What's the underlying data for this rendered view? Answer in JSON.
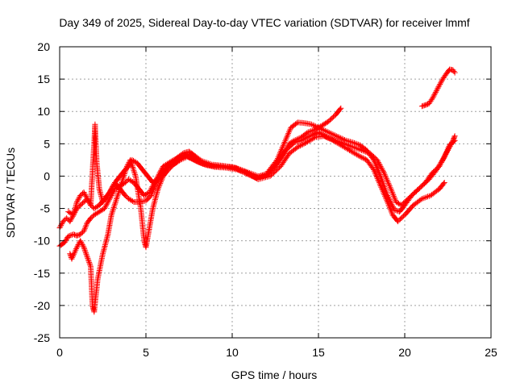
{
  "chart_data": {
    "type": "scatter",
    "title": "Day 349 of 2025, Sidereal Day-to-day VTEC variation (SDTVAR) for receiver lmmf",
    "xlabel": "GPS time / hours",
    "ylabel": "SDTVAR / TECUs",
    "xlim": [
      0,
      25
    ],
    "ylim": [
      -25,
      20
    ],
    "xticks": [
      0,
      5,
      10,
      15,
      20,
      25
    ],
    "yticks": [
      -25,
      -20,
      -15,
      -10,
      -5,
      0,
      5,
      10,
      15,
      20
    ],
    "grid": true,
    "marker": "+",
    "series_color": "#ff0000",
    "series": [
      {
        "name": "trace-1",
        "points": [
          [
            0.0,
            -10.8
          ],
          [
            0.3,
            -10.2
          ],
          [
            0.5,
            -9.3
          ],
          [
            0.8,
            -9.0
          ],
          [
            1.0,
            -9.2
          ],
          [
            1.2,
            -9.0
          ],
          [
            1.4,
            -8.5
          ],
          [
            1.6,
            -7.2
          ],
          [
            1.8,
            -6.5
          ],
          [
            2.0,
            -6.0
          ],
          [
            2.3,
            -5.5
          ],
          [
            2.6,
            -5.0
          ],
          [
            2.8,
            -4.0
          ],
          [
            3.0,
            -3.0
          ],
          [
            3.2,
            -2.0
          ],
          [
            3.5,
            -1.5
          ],
          [
            3.8,
            -1.0
          ],
          [
            4.0,
            -0.5
          ],
          [
            4.3,
            -1.0
          ],
          [
            4.6,
            -2.0
          ],
          [
            4.9,
            -3.0
          ],
          [
            5.2,
            -2.5
          ],
          [
            5.5,
            -1.0
          ],
          [
            5.8,
            0.5
          ],
          [
            6.0,
            1.5
          ],
          [
            6.3,
            2.0
          ],
          [
            6.6,
            2.5
          ],
          [
            7.0,
            3.0
          ],
          [
            7.3,
            3.2
          ],
          [
            7.6,
            2.8
          ],
          [
            8.0,
            2.2
          ],
          [
            8.5,
            1.7
          ],
          [
            9.0,
            1.5
          ],
          [
            9.5,
            1.5
          ],
          [
            10.0,
            1.4
          ],
          [
            10.5,
            1.0
          ],
          [
            11.0,
            0.5
          ],
          [
            11.5,
            0.0
          ],
          [
            12.0,
            0.2
          ],
          [
            12.5,
            1.5
          ],
          [
            13.0,
            3.5
          ],
          [
            13.3,
            5.0
          ],
          [
            13.6,
            5.5
          ],
          [
            14.0,
            6.0
          ],
          [
            14.4,
            6.8
          ],
          [
            14.8,
            7.2
          ],
          [
            15.2,
            7.8
          ],
          [
            15.6,
            8.5
          ],
          [
            16.0,
            9.5
          ],
          [
            16.3,
            10.5
          ]
        ]
      },
      {
        "name": "trace-2",
        "points": [
          [
            0.0,
            -8.0
          ],
          [
            0.2,
            -7.0
          ],
          [
            0.4,
            -6.5
          ],
          [
            0.6,
            -7.0
          ],
          [
            0.8,
            -6.0
          ],
          [
            1.0,
            -4.0
          ],
          [
            1.2,
            -3.0
          ],
          [
            1.4,
            -2.5
          ],
          [
            1.6,
            -3.5
          ],
          [
            1.8,
            -4.5
          ],
          [
            1.9,
            0.5
          ],
          [
            2.0,
            5.0
          ],
          [
            2.05,
            8.0
          ],
          [
            2.15,
            2.0
          ],
          [
            2.3,
            -2.0
          ],
          [
            2.5,
            -4.0
          ],
          [
            2.8,
            -3.0
          ],
          [
            3.0,
            -2.0
          ],
          [
            3.2,
            -1.0
          ],
          [
            3.5,
            -2.0
          ],
          [
            3.8,
            -3.0
          ],
          [
            4.0,
            -3.5
          ],
          [
            4.3,
            -4.0
          ],
          [
            4.6,
            -4.0
          ],
          [
            5.0,
            -3.8
          ],
          [
            5.3,
            -3.0
          ],
          [
            5.6,
            -1.0
          ],
          [
            6.0,
            1.0
          ],
          [
            6.4,
            1.8
          ],
          [
            6.8,
            2.8
          ],
          [
            7.2,
            3.6
          ],
          [
            7.5,
            3.8
          ],
          [
            7.8,
            3.2
          ],
          [
            8.2,
            2.4
          ],
          [
            8.8,
            1.8
          ],
          [
            9.5,
            1.6
          ],
          [
            10.2,
            1.3
          ],
          [
            10.8,
            0.6
          ],
          [
            11.4,
            -0.2
          ],
          [
            12.0,
            0.4
          ],
          [
            12.6,
            2.5
          ],
          [
            13.0,
            5.0
          ],
          [
            13.4,
            7.5
          ],
          [
            13.8,
            8.3
          ],
          [
            14.2,
            8.2
          ],
          [
            14.6,
            8.0
          ],
          [
            15.0,
            7.5
          ],
          [
            15.4,
            7.0
          ],
          [
            15.8,
            6.5
          ],
          [
            16.2,
            6.0
          ],
          [
            16.6,
            5.5
          ],
          [
            17.0,
            5.2
          ],
          [
            17.4,
            4.8
          ],
          [
            17.8,
            4.0
          ],
          [
            18.2,
            2.5
          ],
          [
            18.6,
            0.0
          ],
          [
            19.0,
            -3.0
          ],
          [
            19.4,
            -5.2
          ],
          [
            19.7,
            -5.5
          ],
          [
            20.0,
            -4.5
          ],
          [
            20.4,
            -3.0
          ],
          [
            20.8,
            -2.0
          ],
          [
            21.2,
            -1.0
          ],
          [
            21.6,
            0.5
          ],
          [
            22.0,
            1.5
          ],
          [
            22.3,
            3.0
          ],
          [
            22.6,
            4.8
          ],
          [
            22.9,
            5.5
          ]
        ]
      },
      {
        "name": "trace-3",
        "points": [
          [
            0.6,
            -12.0
          ],
          [
            0.7,
            -12.8
          ],
          [
            1.0,
            -11.0
          ],
          [
            1.2,
            -10.0
          ],
          [
            1.4,
            -11.0
          ],
          [
            1.6,
            -12.5
          ],
          [
            1.8,
            -14.0
          ],
          [
            1.9,
            -20.0
          ],
          [
            2.0,
            -21.0
          ],
          [
            2.2,
            -16.0
          ],
          [
            2.5,
            -12.0
          ],
          [
            2.8,
            -9.0
          ],
          [
            3.0,
            -6.0
          ],
          [
            3.3,
            -3.5
          ],
          [
            3.6,
            -1.0
          ],
          [
            3.9,
            1.5
          ],
          [
            4.1,
            2.5
          ],
          [
            4.4,
            0.0
          ],
          [
            4.7,
            -5.0
          ],
          [
            4.9,
            -10.0
          ],
          [
            5.0,
            -11.0
          ],
          [
            5.2,
            -8.0
          ],
          [
            5.4,
            -5.0
          ],
          [
            5.7,
            -2.0
          ],
          [
            6.0,
            0.0
          ],
          [
            6.3,
            1.0
          ],
          [
            6.6,
            1.8
          ],
          [
            7.0,
            2.5
          ],
          [
            7.4,
            3.0
          ],
          [
            7.8,
            2.5
          ],
          [
            8.3,
            1.9
          ],
          [
            9.0,
            1.4
          ],
          [
            9.6,
            1.3
          ],
          [
            10.3,
            1.0
          ],
          [
            11.0,
            0.3
          ],
          [
            11.5,
            -0.5
          ],
          [
            12.2,
            0.0
          ],
          [
            12.8,
            1.5
          ],
          [
            13.3,
            3.5
          ],
          [
            13.8,
            4.5
          ],
          [
            14.3,
            5.2
          ],
          [
            14.8,
            6.0
          ],
          [
            15.3,
            6.2
          ],
          [
            15.8,
            5.6
          ],
          [
            16.3,
            4.8
          ],
          [
            16.8,
            4.0
          ],
          [
            17.3,
            3.2
          ],
          [
            17.8,
            2.5
          ],
          [
            18.2,
            1.0
          ],
          [
            18.6,
            -1.5
          ],
          [
            19.0,
            -4.0
          ],
          [
            19.3,
            -6.0
          ],
          [
            19.6,
            -7.0
          ],
          [
            20.0,
            -6.0
          ],
          [
            20.5,
            -4.5
          ],
          [
            21.0,
            -3.5
          ],
          [
            21.5,
            -3.0
          ],
          [
            22.0,
            -2.0
          ],
          [
            22.3,
            -1.0
          ]
        ]
      },
      {
        "name": "trace-4",
        "points": [
          [
            0.5,
            -5.5
          ],
          [
            0.8,
            -6.0
          ],
          [
            1.0,
            -5.0
          ],
          [
            1.2,
            -4.5
          ],
          [
            1.4,
            -4.0
          ],
          [
            1.6,
            -3.5
          ],
          [
            1.8,
            -4.5
          ],
          [
            2.0,
            -5.0
          ],
          [
            2.3,
            -4.5
          ],
          [
            2.6,
            -3.5
          ],
          [
            2.9,
            -2.5
          ],
          [
            3.2,
            -1.0
          ],
          [
            3.5,
            0.0
          ],
          [
            3.8,
            1.0
          ],
          [
            4.0,
            1.5
          ],
          [
            4.2,
            2.5
          ],
          [
            4.5,
            2.0
          ],
          [
            4.8,
            1.0
          ],
          [
            5.1,
            0.0
          ],
          [
            5.4,
            -1.0
          ],
          [
            5.7,
            -0.5
          ],
          [
            6.0,
            0.5
          ],
          [
            6.3,
            1.5
          ],
          [
            6.7,
            2.0
          ],
          [
            7.0,
            2.8
          ],
          [
            7.4,
            3.4
          ],
          [
            7.8,
            3.0
          ],
          [
            8.2,
            2.2
          ],
          [
            8.8,
            1.6
          ],
          [
            9.5,
            1.5
          ],
          [
            10.2,
            1.2
          ],
          [
            10.8,
            0.4
          ],
          [
            11.4,
            -0.3
          ],
          [
            12.0,
            0.1
          ],
          [
            12.6,
            2.0
          ],
          [
            13.1,
            4.0
          ],
          [
            13.6,
            5.2
          ],
          [
            14.0,
            5.5
          ],
          [
            14.5,
            6.2
          ],
          [
            15.0,
            6.8
          ],
          [
            15.5,
            6.0
          ],
          [
            16.0,
            5.5
          ],
          [
            16.5,
            5.0
          ],
          [
            17.0,
            4.5
          ],
          [
            17.5,
            4.0
          ],
          [
            18.0,
            3.5
          ],
          [
            18.4,
            2.5
          ],
          [
            18.8,
            0.5
          ],
          [
            19.2,
            -2.0
          ],
          [
            19.5,
            -4.0
          ],
          [
            19.8,
            -4.5
          ],
          [
            20.2,
            -3.5
          ],
          [
            20.6,
            -2.5
          ],
          [
            21.0,
            -1.5
          ],
          [
            21.4,
            -0.5
          ],
          [
            21.8,
            0.8
          ],
          [
            22.2,
            2.5
          ],
          [
            22.5,
            4.0
          ],
          [
            22.8,
            5.5
          ],
          [
            22.9,
            6.2
          ]
        ]
      },
      {
        "name": "trace-5",
        "points": [
          [
            21.0,
            10.8
          ],
          [
            21.2,
            11.0
          ],
          [
            21.4,
            11.2
          ],
          [
            21.6,
            12.0
          ],
          [
            21.8,
            13.0
          ],
          [
            22.0,
            14.0
          ],
          [
            22.2,
            15.0
          ],
          [
            22.4,
            15.8
          ],
          [
            22.6,
            16.5
          ],
          [
            22.8,
            16.4
          ],
          [
            22.9,
            16.0
          ]
        ]
      }
    ]
  }
}
